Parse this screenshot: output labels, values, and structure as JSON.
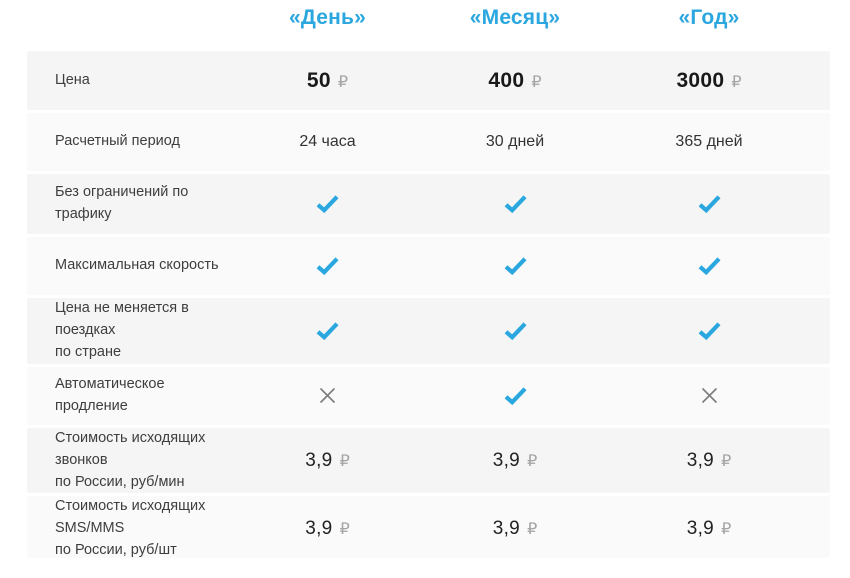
{
  "colors": {
    "accent": "#2aa7df",
    "cross": "#7c7c7c",
    "row_odd_bg": "#f5f5f5",
    "row_even_bg": "#fafafa",
    "price_text": "#1a1a1a",
    "label_text": "#3e3e3e",
    "ruble_sign_gray": "#a5a5a5"
  },
  "icons": {
    "check": "check-icon",
    "cross": "cross-icon"
  },
  "table": {
    "columns": [
      {
        "label": "«День»"
      },
      {
        "label": "«Месяц»"
      },
      {
        "label": "«Год»"
      }
    ],
    "rows": [
      {
        "label": "Цена",
        "values": [
          "50",
          "400",
          "3000"
        ],
        "currency": "₽"
      },
      {
        "label": "Расчетный период",
        "values": [
          "24 часа",
          "30 дней",
          "365 дней"
        ]
      },
      {
        "label": "Без ограничений по трафику",
        "values": [
          "check",
          "check",
          "check"
        ]
      },
      {
        "label": "Максимальная скорость",
        "values": [
          "check",
          "check",
          "check"
        ]
      },
      {
        "label": "Цена не меняется в поездках\nпо стране",
        "values": [
          "check",
          "check",
          "check"
        ]
      },
      {
        "label": "Автоматическое продление",
        "values": [
          "cross",
          "check",
          "cross"
        ]
      },
      {
        "label": "Стоимость исходящих звонков\nпо России, руб/мин",
        "values": [
          "3,9",
          "3,9",
          "3,9"
        ],
        "currency": "₽"
      },
      {
        "label": "Стоимость исходящих SMS/MMS\nпо России, руб/шт",
        "values": [
          "3,9",
          "3,9",
          "3,9"
        ],
        "currency": "₽"
      }
    ]
  }
}
